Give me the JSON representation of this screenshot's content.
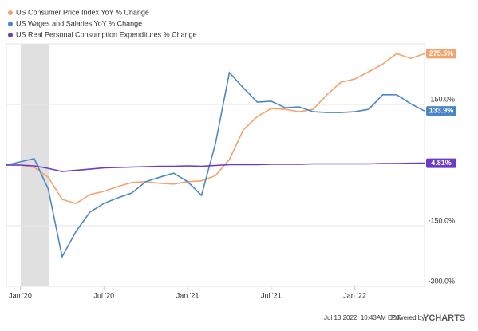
{
  "chart_data": {
    "type": "line",
    "x": [
      "2019-12",
      "2020-01",
      "2020-02",
      "2020-03",
      "2020-04",
      "2020-05",
      "2020-06",
      "2020-07",
      "2020-08",
      "2020-09",
      "2020-10",
      "2020-11",
      "2020-12",
      "2021-01",
      "2021-02",
      "2021-03",
      "2021-04",
      "2021-05",
      "2021-06",
      "2021-07",
      "2021-08",
      "2021-09",
      "2021-10",
      "2021-11",
      "2021-12",
      "2022-01",
      "2022-02",
      "2022-03",
      "2022-04",
      "2022-05",
      "2022-06"
    ],
    "series": [
      {
        "name": "US Consumer Price Index YoY % Change",
        "color": "#f4a36c",
        "values": [
          0,
          0,
          -6,
          -30,
          -85,
          -95,
          -73,
          -65,
          -53,
          -43,
          -41,
          -45,
          -47,
          -41,
          -39,
          -26,
          14,
          87,
          120,
          140,
          138,
          132,
          138,
          174,
          205,
          213,
          231,
          250,
          276,
          264,
          275.5
        ],
        "value_labels": [
          null,
          null,
          null,
          null,
          null,
          null,
          null,
          null,
          null,
          null,
          null,
          null,
          null,
          null,
          null,
          null,
          null,
          null,
          null,
          null,
          null,
          null,
          null,
          null,
          null,
          null,
          null,
          null,
          null,
          null,
          "275.5%"
        ]
      },
      {
        "name": "US Wages and Salaries YoY % Change",
        "color": "#4a86c8",
        "values": [
          0,
          8,
          16,
          -59,
          -227,
          -164,
          -116,
          -95,
          -81,
          -69,
          -41,
          -30,
          -20,
          -41,
          -75,
          53,
          229,
          191,
          156,
          158,
          142,
          144,
          132,
          130,
          130,
          132,
          138,
          174,
          174,
          152,
          133.9
        ],
        "value_labels": [
          null,
          null,
          null,
          null,
          null,
          null,
          null,
          null,
          null,
          null,
          null,
          null,
          null,
          null,
          null,
          null,
          null,
          null,
          null,
          null,
          null,
          null,
          null,
          null,
          null,
          null,
          null,
          null,
          null,
          null,
          "133.9%"
        ]
      },
      {
        "name": "US Real Personal Consumption Expenditures % Change",
        "color": "#6a3bc8",
        "values": [
          0,
          0,
          -2,
          -8,
          -16,
          -13,
          -10,
          -7,
          -6,
          -5,
          -4,
          -3,
          -3,
          -2,
          -3,
          -1,
          1,
          1,
          1,
          2,
          2,
          2,
          3,
          3,
          3,
          3,
          3,
          4,
          4,
          4.5,
          4.81
        ],
        "value_labels": [
          null,
          null,
          null,
          null,
          null,
          null,
          null,
          null,
          null,
          null,
          null,
          null,
          null,
          null,
          null,
          null,
          null,
          null,
          null,
          null,
          null,
          null,
          null,
          null,
          null,
          null,
          null,
          null,
          null,
          null,
          "4.81%"
        ]
      }
    ],
    "ylim": [
      -300,
      300
    ],
    "yticks": [
      {
        "value": 150,
        "label": "150.0%"
      },
      {
        "value": -150,
        "label": "-150.0%"
      },
      {
        "value": -300,
        "label": "-300.0%"
      }
    ],
    "xticks": [
      {
        "value": "2020-01",
        "label": "Jan '20"
      },
      {
        "value": "2020-07",
        "label": "Jul '20"
      },
      {
        "value": "2021-01",
        "label": "Jan '21"
      },
      {
        "value": "2021-07",
        "label": "Jul '21"
      },
      {
        "value": "2022-01",
        "label": "Jan '22"
      }
    ],
    "grid": true,
    "footer": {
      "timestamp": "Jul 13 2022, 10:43AM EDT.",
      "powered": "Powered by",
      "brand": "YCHARTS"
    }
  }
}
